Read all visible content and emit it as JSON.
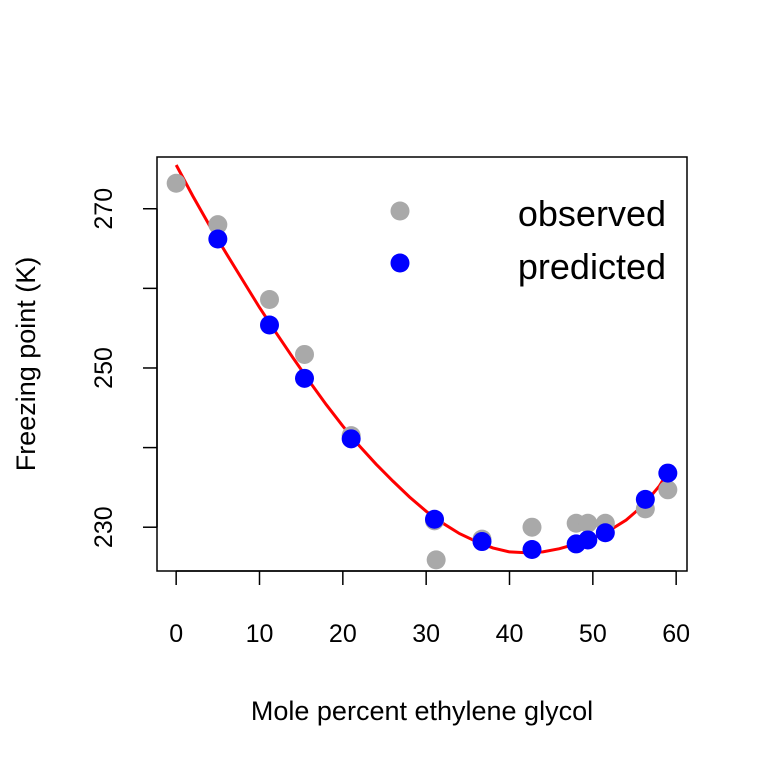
{
  "chart_data": {
    "type": "scatter",
    "title": "",
    "xlabel": "Mole percent ethylene glycol",
    "ylabel": "Freezing point (K)",
    "xlim": [
      -2.3,
      61.3
    ],
    "ylim": [
      224.5,
      276.5
    ],
    "x_ticks": [
      0,
      10,
      20,
      30,
      40,
      50,
      60
    ],
    "y_ticks": [
      230,
      240,
      250,
      260,
      270
    ],
    "y_tick_labels": [
      "230",
      "",
      "250",
      "",
      "270"
    ],
    "legend_position": "top-right",
    "series": [
      {
        "name": "observed",
        "color": "#A9A9A9",
        "marker": "circle",
        "points": [
          [
            0,
            273.2
          ],
          [
            5,
            268.0
          ],
          [
            11.2,
            258.6
          ],
          [
            15.4,
            251.7
          ],
          [
            21,
            241.5
          ],
          [
            31,
            230.8
          ],
          [
            31.2,
            225.9
          ],
          [
            36.7,
            228.5
          ],
          [
            42.7,
            230.0
          ],
          [
            48,
            230.5
          ],
          [
            49.4,
            230.5
          ],
          [
            51.5,
            230.5
          ],
          [
            56.3,
            232.3
          ],
          [
            59,
            234.7
          ]
        ]
      },
      {
        "name": "predicted",
        "color": "#0000FF",
        "marker": "circle",
        "points": [
          [
            5,
            266.2
          ],
          [
            11.2,
            255.4
          ],
          [
            15.4,
            248.7
          ],
          [
            21,
            241.1
          ],
          [
            31,
            231.0
          ],
          [
            36.7,
            228.2
          ],
          [
            42.7,
            227.2
          ],
          [
            48,
            227.9
          ],
          [
            49.4,
            228.4
          ],
          [
            51.5,
            229.3
          ],
          [
            56.3,
            233.5
          ],
          [
            59,
            236.8
          ]
        ]
      }
    ],
    "fit_curve": {
      "color": "#FF0000",
      "x": [
        0,
        2,
        4,
        6,
        8,
        10,
        12,
        14,
        16,
        18,
        20,
        22,
        24,
        26,
        28,
        30,
        32,
        34,
        36,
        38,
        40,
        42,
        44,
        46,
        48,
        50,
        52,
        54,
        56,
        58,
        59
      ],
      "y": [
        275.5,
        271.6,
        267.9,
        264.4,
        261.0,
        257.6,
        254.4,
        251.3,
        248.3,
        245.4,
        242.7,
        240.2,
        237.9,
        235.8,
        233.8,
        232.0,
        230.5,
        229.2,
        228.2,
        227.4,
        226.9,
        226.8,
        226.9,
        227.3,
        227.9,
        228.6,
        229.6,
        230.9,
        232.7,
        235.2,
        236.9
      ]
    }
  }
}
